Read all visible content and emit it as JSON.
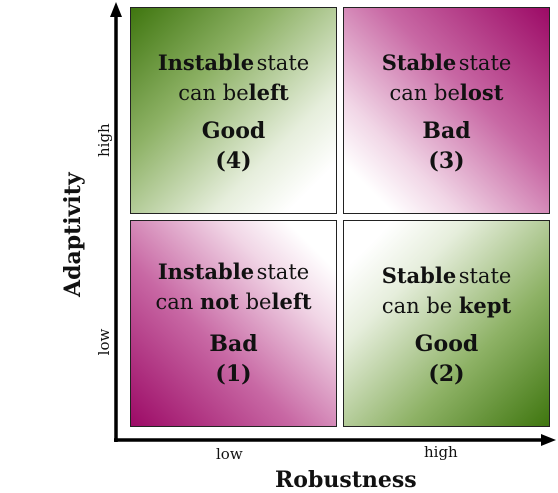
{
  "axes": {
    "x_label": "Robustness",
    "y_label": "Adaptivity",
    "x_low": "low",
    "x_high": "high",
    "y_low": "low",
    "y_high": "high"
  },
  "quadrants": {
    "q4": {
      "w1": "Instable",
      "w2": "state",
      "w3": "can",
      "w4": "be",
      "w5": "left",
      "verdict": "Good",
      "number": "(4)"
    },
    "q3": {
      "w1": "Stable",
      "w2": "state",
      "w3": "can",
      "w4": "be",
      "w5": "lost",
      "verdict": "Bad",
      "number": "(3)"
    },
    "q1": {
      "w1": "Instable",
      "w2": "state",
      "w3": "can",
      "w4": "not",
      "w5": "be",
      "w6": "left",
      "verdict": "Bad",
      "number": "(1)"
    },
    "q2": {
      "w1": "Stable",
      "w2": "state",
      "w3": "can",
      "w4": "be",
      "w5": "kept",
      "verdict": "Good",
      "number": "(2)"
    }
  },
  "colors": {
    "green": "#3f760f",
    "magenta": "#9c0a66",
    "axis": "#000000"
  }
}
